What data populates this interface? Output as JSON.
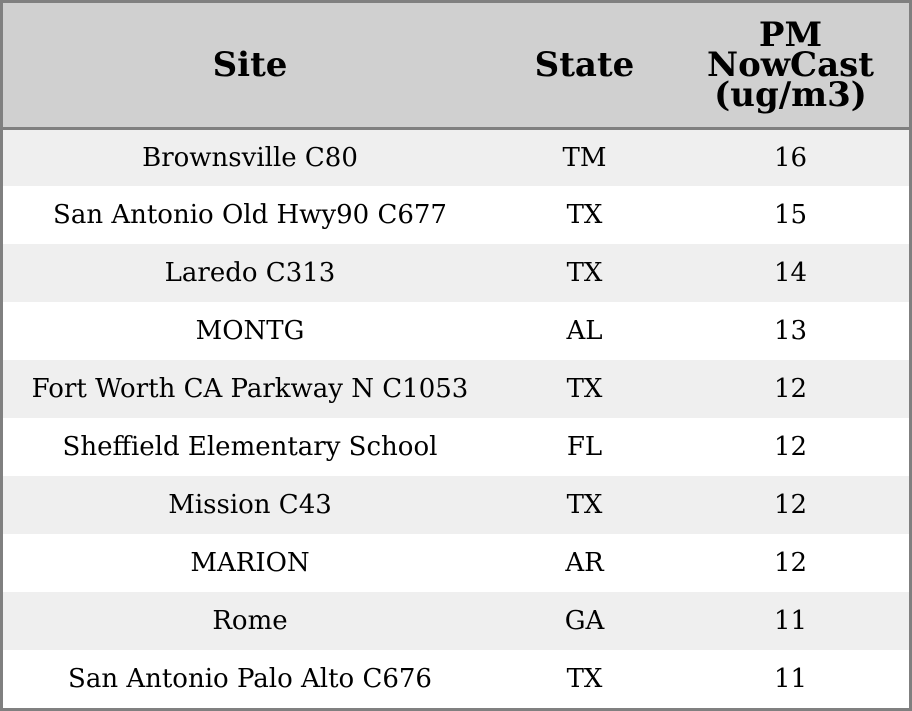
{
  "table": {
    "headers": {
      "site": "Site",
      "state": "State",
      "pm_line1": "PM",
      "pm_line2": "NowCast",
      "pm_line3": "(ug/m3)"
    },
    "rows": [
      {
        "site": "Brownsville C80",
        "state": "TM",
        "pm": "16"
      },
      {
        "site": "San Antonio Old Hwy90 C677",
        "state": "TX",
        "pm": "15"
      },
      {
        "site": "Laredo C313",
        "state": "TX",
        "pm": "14"
      },
      {
        "site": "MONTG",
        "state": "AL",
        "pm": "13"
      },
      {
        "site": "Fort Worth CA Parkway N C1053",
        "state": "TX",
        "pm": "12"
      },
      {
        "site": "Sheffield Elementary School",
        "state": "FL",
        "pm": "12"
      },
      {
        "site": "Mission C43",
        "state": "TX",
        "pm": "12"
      },
      {
        "site": "MARION",
        "state": "AR",
        "pm": "12"
      },
      {
        "site": "Rome",
        "state": "GA",
        "pm": "11"
      },
      {
        "site": "San Antonio Palo Alto C676",
        "state": "TX",
        "pm": "11"
      }
    ]
  },
  "colors": {
    "header_bg": "#d0d0d0",
    "row_alt_bg": "#efefef",
    "row_bg": "#ffffff",
    "border": "#808080"
  }
}
